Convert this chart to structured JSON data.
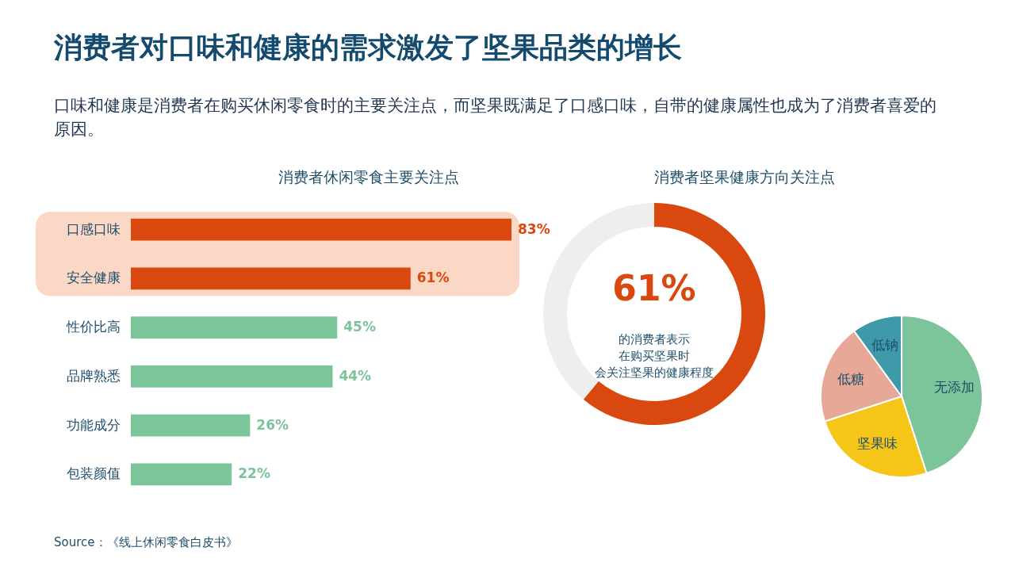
{
  "chart_data": [
    {
      "type": "other",
      "title": "消费者对口味和健康的需求激发了坚果品类的增长",
      "subtitle": "口味和健康是消费者在购买休闲零食时的主要关注点，而坚果既满足了口感口味，自带的健康属性也成为了消费者喜爱的原因。",
      "annotations": [
        "Source：《线上休闲零食白皮书》"
      ]
    },
    {
      "type": "bar",
      "orientation": "horizontal",
      "title": "消费者休闲零食主要关注点",
      "categories": [
        "口感口味",
        "安全健康",
        "性价比高",
        "品牌熟悉",
        "功能成分",
        "包装颜值"
      ],
      "values": [
        83,
        61,
        45,
        44,
        26,
        22
      ],
      "colors": [
        "#d9480f",
        "#d9480f",
        "#7cc49a",
        "#7cc49a",
        "#7cc49a",
        "#7cc49a"
      ],
      "value_labels": [
        "83%",
        "61%",
        "45%",
        "44%",
        "26%",
        "22%"
      ],
      "bands": [
        {
          "axis": "y",
          "from": "口感口味",
          "to": "安全健康",
          "color": "#fbd7c6"
        }
      ]
    },
    {
      "type": "donut",
      "title": "消费者坚果健康方向关注点",
      "categories": [
        null,
        null
      ],
      "values": [
        61,
        39
      ],
      "colors": [
        "#d9480f",
        "#eeeeee"
      ],
      "value_labels": [
        "61%",
        null
      ],
      "annotations": [
        "的消费者表示",
        "在购买坚果时",
        "会关注坚果的健康程度"
      ]
    },
    {
      "type": "pie",
      "categories": [
        "无添加",
        "坚果味",
        "低糖",
        "低钠"
      ],
      "values": [
        45,
        25,
        20,
        10
      ],
      "colors": [
        "#7cc49a",
        "#f5c518",
        "#e8a898",
        "#3e9aa8"
      ]
    }
  ]
}
